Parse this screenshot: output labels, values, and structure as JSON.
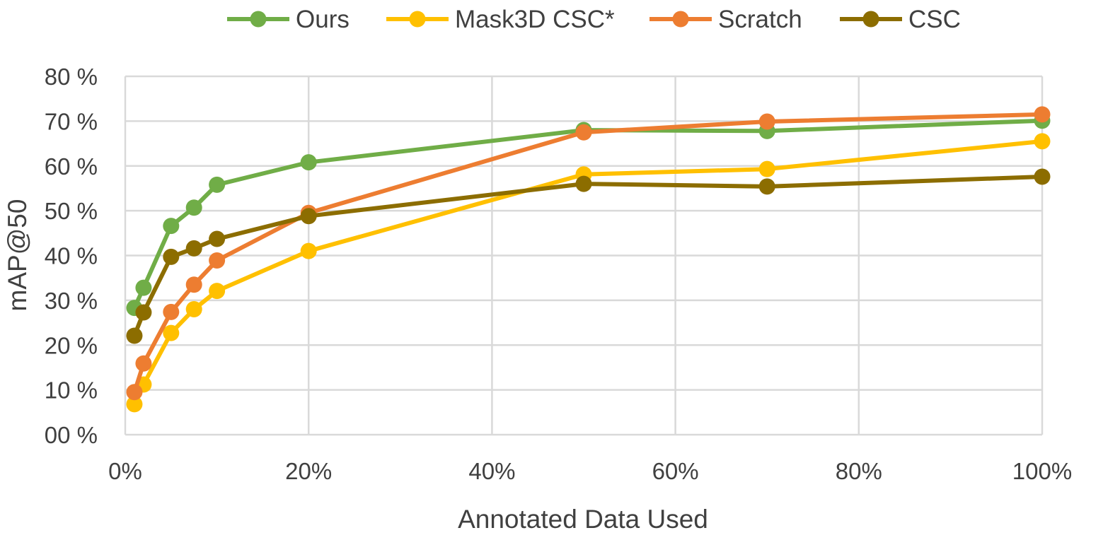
{
  "chart_data": {
    "type": "line",
    "title": "",
    "xlabel": "Annotated Data Used",
    "ylabel": "mAP@50",
    "x": [
      1,
      2,
      5,
      7.5,
      10,
      20,
      50,
      70,
      100
    ],
    "x_ticks": [
      "0%",
      "20%",
      "40%",
      "60%",
      "80%",
      "100%"
    ],
    "y_ticks": [
      "00 %",
      "10 %",
      "20 %",
      "30 %",
      "40 %",
      "50 %",
      "60 %",
      "70 %",
      "80 %"
    ],
    "xlim": [
      0,
      100
    ],
    "ylim": [
      0,
      80
    ],
    "grid": true,
    "legend_position": "top",
    "series": [
      {
        "name": "Ours",
        "color": "#70ad47",
        "values": [
          28.3,
          32.8,
          46.6,
          50.7,
          55.8,
          60.8,
          68.0,
          67.8,
          70.1
        ]
      },
      {
        "name": "Mask3D CSC*",
        "color": "#ffc000",
        "values": [
          6.8,
          11.2,
          22.7,
          28.0,
          32.1,
          41.0,
          58.1,
          59.3,
          65.5
        ]
      },
      {
        "name": "Scratch",
        "color": "#ed7d31",
        "values": [
          9.5,
          15.9,
          27.4,
          33.5,
          38.9,
          49.5,
          67.5,
          69.9,
          71.5
        ]
      },
      {
        "name": "CSC",
        "color": "#8c6d00",
        "values": [
          22.1,
          27.3,
          39.7,
          41.6,
          43.7,
          48.8,
          56.0,
          55.4,
          57.6
        ]
      }
    ]
  }
}
